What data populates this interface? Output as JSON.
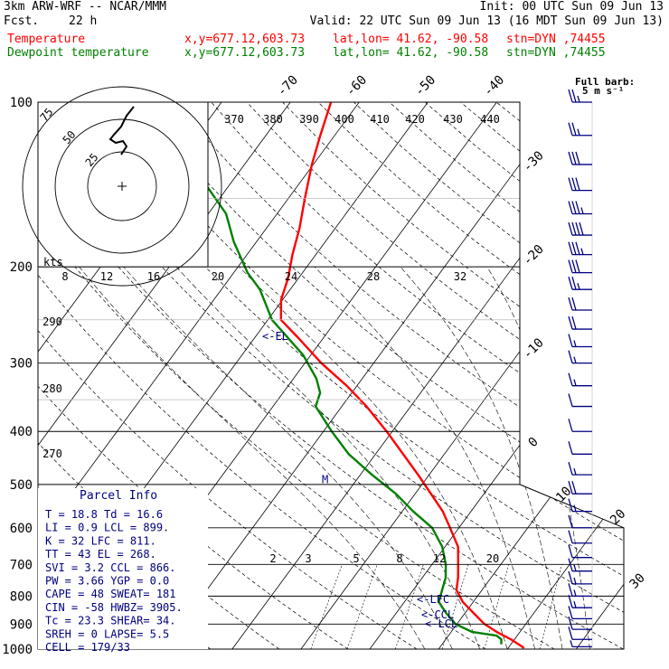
{
  "header": {
    "model": "3km ARW-WRF -- NCAR/MMM",
    "init": "Init: 00 UTC Sun 09 Jun 13",
    "fcst_label": "Fcst.",
    "fcst_value": "22 h",
    "valid": "Valid: 22 UTC Sun 09 Jun 13 (16 MDT Sun 09 Jun 13)",
    "temp_label": "Temperature",
    "dew_label": "Dewpoint temperature",
    "xy": "x,y=677.12,603.73",
    "latlon": "lat,lon= 41.62, -90.58",
    "stn": "stn=DYN ,74455"
  },
  "colors": {
    "temperature": "#ff0000",
    "dewpoint": "#008000",
    "wind": "#000080",
    "text": "#000000"
  },
  "chart_data": {
    "type": "line",
    "title": "Skew-T log-P sounding",
    "pressure_levels": [
      100,
      200,
      300,
      400,
      500,
      600,
      700,
      800,
      900,
      1000
    ],
    "pressure_ylim": [
      1000,
      100
    ],
    "temperature_ticks": [
      -80,
      -70,
      -60,
      -50,
      -40,
      -30,
      -20,
      -10,
      0,
      10,
      20,
      30,
      40
    ],
    "dry_adiabat_labels": [
      370,
      380,
      390,
      400,
      410,
      420,
      430,
      440
    ],
    "temperature_sounding": [
      {
        "p": 995,
        "t": 22.3
      },
      {
        "p": 960,
        "t": 19.5
      },
      {
        "p": 930,
        "t": 16.6
      },
      {
        "p": 900,
        "t": 14.0
      },
      {
        "p": 860,
        "t": 11.3
      },
      {
        "p": 820,
        "t": 8.5
      },
      {
        "p": 780,
        "t": 6.3
      },
      {
        "p": 740,
        "t": 5.2
      },
      {
        "p": 700,
        "t": 3.8
      },
      {
        "p": 650,
        "t": 1.9
      },
      {
        "p": 600,
        "t": -1.3
      },
      {
        "p": 560,
        "t": -4.1
      },
      {
        "p": 520,
        "t": -7.7
      },
      {
        "p": 480,
        "t": -11.6
      },
      {
        "p": 440,
        "t": -16.0
      },
      {
        "p": 400,
        "t": -20.8
      },
      {
        "p": 360,
        "t": -26.4
      },
      {
        "p": 330,
        "t": -31.5
      },
      {
        "p": 300,
        "t": -37.6
      },
      {
        "p": 270,
        "t": -43.6
      },
      {
        "p": 250,
        "t": -48.1
      },
      {
        "p": 230,
        "t": -50.2
      },
      {
        "p": 210,
        "t": -51.5
      },
      {
        "p": 190,
        "t": -53.4
      },
      {
        "p": 170,
        "t": -55.2
      },
      {
        "p": 150,
        "t": -57.6
      },
      {
        "p": 130,
        "t": -60.2
      },
      {
        "p": 115,
        "t": -62.1
      },
      {
        "p": 100,
        "t": -64.1
      }
    ],
    "dewpoint_sounding": [
      {
        "p": 980,
        "t": 18.6
      },
      {
        "p": 960,
        "t": 18.1
      },
      {
        "p": 945,
        "t": 17.0
      },
      {
        "p": 930,
        "t": 13.0
      },
      {
        "p": 900,
        "t": 9.8
      },
      {
        "p": 860,
        "t": 7.3
      },
      {
        "p": 820,
        "t": 5.0
      },
      {
        "p": 780,
        "t": 4.2
      },
      {
        "p": 740,
        "t": 3.4
      },
      {
        "p": 700,
        "t": 2.0
      },
      {
        "p": 650,
        "t": -0.4
      },
      {
        "p": 600,
        "t": -3.9
      },
      {
        "p": 560,
        "t": -8.4
      },
      {
        "p": 520,
        "t": -12.8
      },
      {
        "p": 480,
        "t": -18.3
      },
      {
        "p": 440,
        "t": -23.9
      },
      {
        "p": 400,
        "t": -28.8
      },
      {
        "p": 360,
        "t": -33.8
      },
      {
        "p": 340,
        "t": -34.6
      },
      {
        "p": 320,
        "t": -36.7
      },
      {
        "p": 290,
        "t": -41.1
      },
      {
        "p": 250,
        "t": -49.4
      },
      {
        "p": 220,
        "t": -54.4
      },
      {
        "p": 205,
        "t": -58.0
      },
      {
        "p": 180,
        "t": -63.3
      },
      {
        "p": 160,
        "t": -67.4
      },
      {
        "p": 140,
        "t": -74.0
      },
      {
        "p": 125,
        "t": -79.6
      },
      {
        "p": 100,
        "t": -90.0
      }
    ],
    "level_labels": [
      {
        "text": "<-EL",
        "p": 268
      },
      {
        "text": "<-LFC",
        "p": 811
      },
      {
        "text": "<-CCL",
        "p": 866
      },
      {
        "text": "<-LCL",
        "p": 899
      },
      {
        "text": "M",
        "p": 490
      }
    ],
    "mixing_ratio_labels": [
      "2",
      "3",
      "5",
      "8",
      "12",
      "20"
    ],
    "wind_barbs": [
      {
        "p": 100,
        "kt": 26
      },
      {
        "p": 115,
        "kt": 28
      },
      {
        "p": 130,
        "kt": 30
      },
      {
        "p": 145,
        "kt": 34
      },
      {
        "p": 160,
        "kt": 38
      },
      {
        "p": 175,
        "kt": 42
      },
      {
        "p": 190,
        "kt": 38
      },
      {
        "p": 205,
        "kt": 30
      },
      {
        "p": 220,
        "kt": 26
      },
      {
        "p": 240,
        "kt": 24
      },
      {
        "p": 260,
        "kt": 20
      },
      {
        "p": 280,
        "kt": 18
      },
      {
        "p": 300,
        "kt": 16
      },
      {
        "p": 330,
        "kt": 15
      },
      {
        "p": 360,
        "kt": 14
      },
      {
        "p": 400,
        "kt": 14
      },
      {
        "p": 440,
        "kt": 14
      },
      {
        "p": 480,
        "kt": 18
      },
      {
        "p": 520,
        "kt": 22
      },
      {
        "p": 560,
        "kt": 16
      },
      {
        "p": 600,
        "kt": 14
      },
      {
        "p": 640,
        "kt": 12
      },
      {
        "p": 680,
        "kt": 14
      },
      {
        "p": 720,
        "kt": 16
      },
      {
        "p": 760,
        "kt": 18
      },
      {
        "p": 800,
        "kt": 18
      },
      {
        "p": 840,
        "kt": 16
      },
      {
        "p": 880,
        "kt": 14
      },
      {
        "p": 920,
        "kt": 12
      },
      {
        "p": 960,
        "kt": 10
      },
      {
        "p": 990,
        "kt": 8
      }
    ],
    "barb_legend": [
      "Full barb:",
      "5 m s⁻¹"
    ],
    "hodograph": {
      "ring_labels": [
        "25",
        "50",
        "75"
      ],
      "kts_label": "kts",
      "speed_labels": [
        "8",
        "12",
        "16",
        "20",
        "24",
        "28",
        "32"
      ]
    }
  },
  "parcel": {
    "title": "Parcel Info",
    "lines": [
      "T   =  18.8  Td =  16.6",
      "LI  =   0.9  LCL = 899.",
      "K   =    32  LFC = 811.",
      "TT  =    43  EL  = 268.",
      "SVI =   3.2  CCL = 866.",
      "PW  =  3.66  YGP =  0.0",
      "CAPE =    48  SWEAT=  181",
      "CIN  =   -58  HWBZ= 3905.",
      "Tc  =  23.3  SHEAR=  34.",
      "SREH =     0  LAPSE=  5.5",
      "CELL = 179/33"
    ]
  }
}
